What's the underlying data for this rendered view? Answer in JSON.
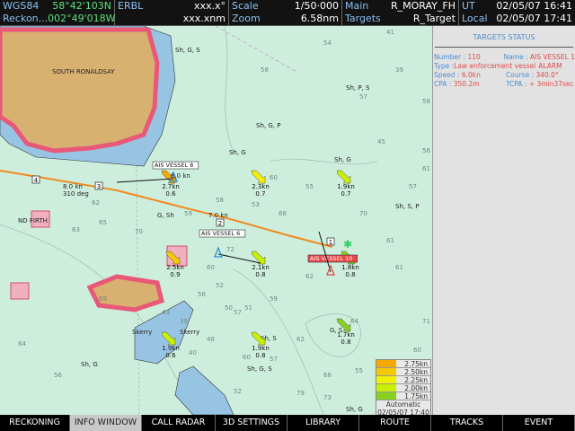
{
  "topbar": {
    "datum": "WGS84",
    "lat": "58°42'103N",
    "reckon_label": "Reckon...",
    "lon": "002°49'018W",
    "erbl_label": "ERBL",
    "erbl_bearing": "xxx.x°",
    "erbl_range": "xxx.xnm",
    "scale_label": "Scale",
    "scale_value": "1/50·000",
    "zoom_label": "Zoom",
    "zoom_value": "6.58nm",
    "main_label": "Main",
    "main_value": "R_MORAY_FH",
    "targets_label": "Targets",
    "targets_value": "R_Target",
    "ut_label": "UT",
    "ut_value": "02/05/07 16:41",
    "local_label": "Local",
    "local_value": "02/05/07 17:41"
  },
  "targets_status": {
    "title": "TARGETS STATUS",
    "number_label": "Number : ",
    "number": "110",
    "name_label": "Name : ",
    "name": "AIS VESSEL 1",
    "type_label": "Type : ",
    "type": "Law enforcement vessel",
    "alarm": "ALARM",
    "speed_label": "Speed : ",
    "speed": "6.0kn",
    "course_label": "Course : ",
    "course": "340.0°",
    "cpa_label": "CPA : ",
    "cpa": "350.2m",
    "tcpa_label": "TCPA : ",
    "tcpa": "+ 3min37sec"
  },
  "legend": {
    "items": [
      {
        "label": "2.75kn",
        "color": "#f5a800"
      },
      {
        "label": "2.50kn",
        "color": "#f5c800"
      },
      {
        "label": "2.25kn",
        "color": "#f0f000"
      },
      {
        "label": "2.00kn",
        "color": "#c8f000"
      },
      {
        "label": "1.75kn",
        "color": "#88d020"
      }
    ],
    "mode": "Automatic",
    "timestamp": "02/05/07 17:40"
  },
  "map": {
    "place_names": [
      "SOUTH RONALDSAY",
      "Skerry",
      "Skerry",
      "ND FIRTH"
    ],
    "vessels": [
      {
        "name": "AIS VESSEL 8",
        "speed": "6.0 kn"
      },
      {
        "name": "AIS VESSEL 6",
        "speed": "7.0 kn"
      },
      {
        "name": "AIS VESSEL 10",
        "speed": ""
      }
    ],
    "route_waypoints": [
      "4",
      "3",
      "2",
      "1"
    ],
    "route_info": [
      "8.0 kn",
      "310 deg"
    ],
    "tidal_streams": [
      {
        "speed": "2.7kn",
        "value": "0.6"
      },
      {
        "speed": "2.3kn",
        "value": "0.7"
      },
      {
        "speed": "1.9kn",
        "value": "0.7"
      },
      {
        "speed": "2.5kn",
        "value": "0.9"
      },
      {
        "speed": "2.1kn",
        "value": "0.8"
      },
      {
        "speed": "1.8kn",
        "value": "0.8"
      },
      {
        "speed": "1.9kn",
        "value": "0.6"
      },
      {
        "speed": "1.9kn",
        "value": "0.8"
      },
      {
        "speed": "1.7kn",
        "value": "0.8"
      }
    ],
    "seabed_labels": [
      "Sh, G, S",
      "Sh, G",
      "Sh, P, S",
      "Sh, G, P",
      "Sh, G",
      "Sh, S, P",
      "G, Sh",
      "Sh, S",
      "Sh, G, S",
      "G, S",
      "Sh, G",
      "Sh, G, S",
      "Sh, G"
    ],
    "soundings": [
      "41",
      "39",
      "45",
      "56",
      "58",
      "54",
      "57",
      "58",
      "61",
      "60",
      "55",
      "59",
      "58",
      "53",
      "68",
      "70",
      "61",
      "57",
      "59",
      "62",
      "60",
      "56",
      "57",
      "62",
      "64",
      "71",
      "55",
      "60",
      "73",
      "79",
      "69",
      "63",
      "62",
      "64",
      "56",
      "48",
      "40",
      "43",
      "39",
      "52",
      "57",
      "52",
      "50",
      "51",
      "65",
      "70",
      "72",
      "60",
      "66",
      "61"
    ]
  },
  "bottombar": {
    "buttons": [
      "RECKONING",
      "INFO WINDOW",
      "CALL RADAR",
      "3D SETTINGS",
      "LIBRARY",
      "ROUTE",
      "TRACKS",
      "EVENT"
    ],
    "active": "INFO WINDOW"
  }
}
